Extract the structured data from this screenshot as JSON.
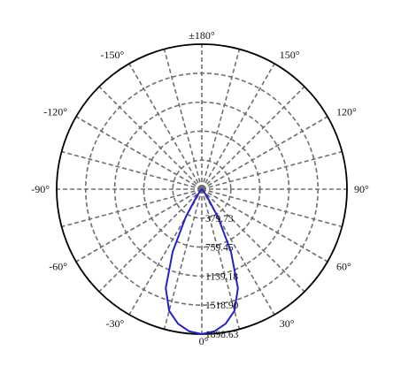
{
  "chart_data": {
    "type": "polar",
    "title": "",
    "radial_max": 1898.63,
    "radial_ticks": [
      {
        "value": 379.73,
        "label": "379.73"
      },
      {
        "value": 759.45,
        "label": "759.45"
      },
      {
        "value": 1139.18,
        "label": "1139.18"
      },
      {
        "value": 1518.9,
        "label": "1518.90"
      },
      {
        "value": 1898.63,
        "label": "1898.63"
      }
    ],
    "angle_labels": [
      {
        "angle": 180,
        "label": "±180°"
      },
      {
        "angle": -150,
        "label": "-150°"
      },
      {
        "angle": 150,
        "label": "150°"
      },
      {
        "angle": -120,
        "label": "-120°"
      },
      {
        "angle": 120,
        "label": "120°"
      },
      {
        "angle": -90,
        "label": "-90°"
      },
      {
        "angle": 90,
        "label": "90°"
      },
      {
        "angle": -60,
        "label": "-60°"
      },
      {
        "angle": 60,
        "label": "60°"
      },
      {
        "angle": -30,
        "label": "-30°"
      },
      {
        "angle": 30,
        "label": "30°"
      },
      {
        "angle": 0,
        "label": "0°"
      }
    ],
    "spoke_step_deg": 15,
    "grid": true,
    "colors": {
      "series": "#2222cc",
      "grid": "#707070",
      "frame": "#000000"
    },
    "series": [
      {
        "angles": [
          -40,
          -35,
          -30,
          -25,
          -20,
          -15,
          -10,
          -5,
          0,
          5,
          10,
          15,
          20,
          25,
          30,
          35,
          40
        ],
        "values": [
          35,
          120,
          420,
          900,
          1380,
          1650,
          1790,
          1870,
          1898.63,
          1870,
          1790,
          1650,
          1380,
          900,
          420,
          120,
          35
        ]
      }
    ]
  }
}
